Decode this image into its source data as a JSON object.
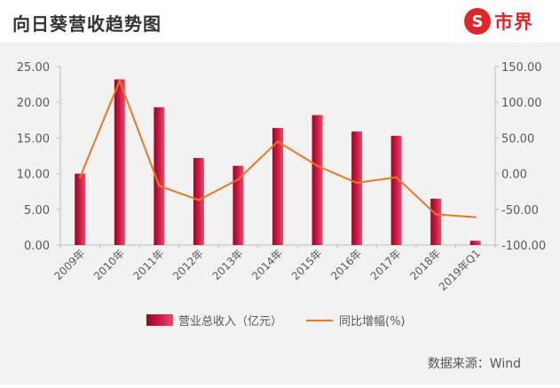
{
  "header": {
    "title": "向日葵营收趋势图",
    "logo_text": "市界",
    "logo_mark": "S"
  },
  "source": "数据来源：Wind",
  "colors": {
    "bar": "#c8183f",
    "line": "#e87722",
    "axis": "#bfbfbf",
    "text": "#595959"
  },
  "chart_data": {
    "type": "bar+line",
    "title": "向日葵营收趋势图",
    "categories": [
      "2009年",
      "2010年",
      "2011年",
      "2012年",
      "2013年",
      "2014年",
      "2015年",
      "2016年",
      "2017年",
      "2018年",
      "2019年Q1"
    ],
    "series": [
      {
        "name": "营业总收入（亿元）",
        "kind": "bar",
        "axis": "left",
        "values": [
          10.0,
          23.2,
          19.3,
          12.2,
          11.1,
          16.4,
          18.2,
          15.9,
          15.3,
          6.5,
          0.6
        ]
      },
      {
        "name": "同比增幅(%)",
        "kind": "line",
        "axis": "right",
        "values": [
          -5,
          130,
          -17,
          -37,
          -8,
          45,
          11,
          -13,
          -5,
          -57,
          -61
        ]
      }
    ],
    "y_left": {
      "min": 0,
      "max": 25,
      "step": 5,
      "tick_labels": [
        "0.00",
        "5.00",
        "10.00",
        "15.00",
        "20.00",
        "25.00"
      ]
    },
    "y_right": {
      "min": -100,
      "max": 150,
      "step": 50,
      "tick_labels": [
        "-100.00",
        "-50.00",
        "0.00",
        "50.00",
        "100.00",
        "150.00"
      ]
    },
    "legend": {
      "position": "bottom",
      "bar_label": "营业总收入（亿元）",
      "line_label": "同比增幅(%)"
    }
  }
}
